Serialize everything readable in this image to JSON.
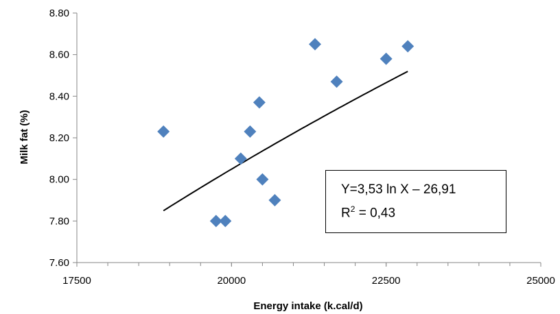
{
  "chart_data": {
    "type": "scatter",
    "xlabel": "Energy intake (k.cal/d)",
    "ylabel": "Milk fat (%)",
    "xlim": [
      17500,
      25000
    ],
    "ylim": [
      7.6,
      8.8
    ],
    "x_ticks": [
      17500,
      20000,
      22500,
      25000
    ],
    "y_ticks": [
      7.6,
      7.8,
      8.0,
      8.2,
      8.4,
      8.6,
      8.8
    ],
    "x_tick_labels": [
      "17500",
      "20000",
      "22500",
      "25000"
    ],
    "y_tick_labels": [
      "7.60",
      "7.80",
      "8.00",
      "8.20",
      "8.40",
      "8.60",
      "8.80"
    ],
    "x_minor_step": 500,
    "grid": false,
    "marker": "diamond",
    "marker_color": "#4F81BD",
    "points": [
      {
        "x": 18900,
        "y": 8.23
      },
      {
        "x": 19750,
        "y": 7.8
      },
      {
        "x": 19900,
        "y": 7.8
      },
      {
        "x": 20150,
        "y": 8.1
      },
      {
        "x": 20300,
        "y": 8.23
      },
      {
        "x": 20450,
        "y": 8.37
      },
      {
        "x": 20500,
        "y": 8.0
      },
      {
        "x": 20700,
        "y": 7.9
      },
      {
        "x": 21350,
        "y": 8.65
      },
      {
        "x": 21700,
        "y": 8.47
      },
      {
        "x": 22500,
        "y": 8.58
      },
      {
        "x": 22850,
        "y": 8.64
      }
    ],
    "trendline": {
      "type": "logarithmic",
      "a": 3.53,
      "b": -26.91,
      "x_range": [
        18900,
        22850
      ],
      "color": "#000000"
    },
    "annotation": {
      "line1": "Y=3,53 ln X – 26,91",
      "line2_prefix": "R",
      "line2_sup": "2",
      "line2_suffix": " = 0,43"
    }
  }
}
